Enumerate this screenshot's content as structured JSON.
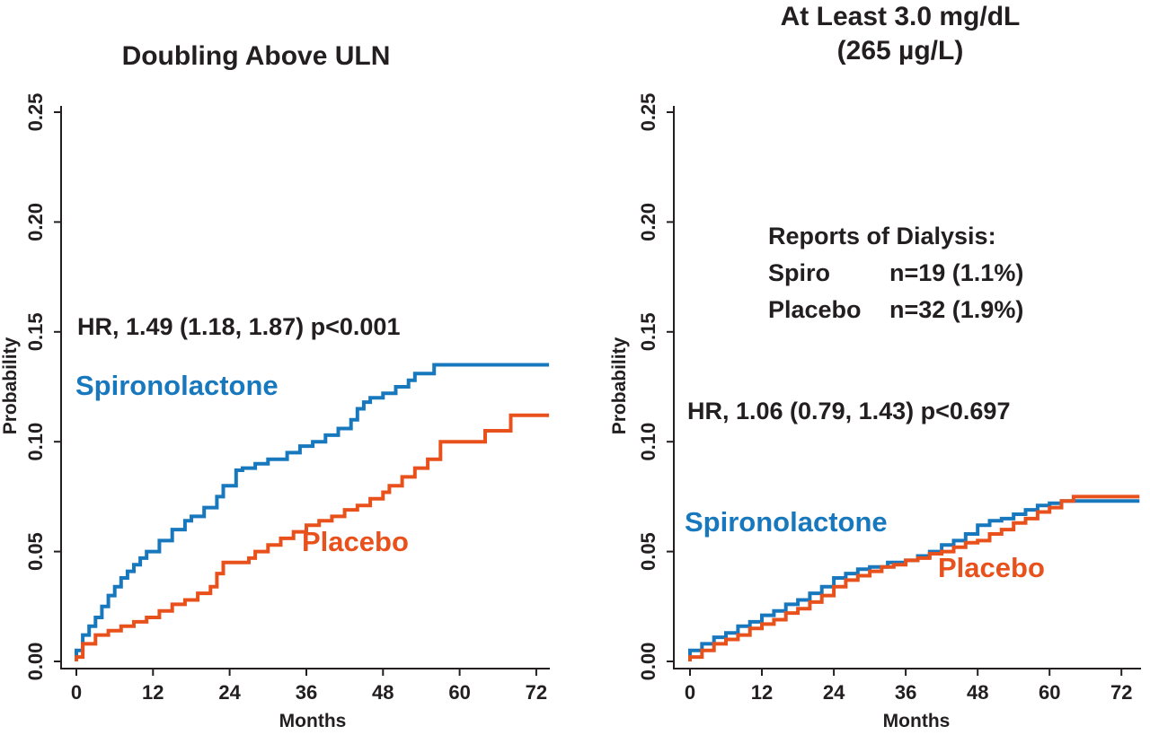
{
  "colors": {
    "spironolactone": "#1878be",
    "placebo": "#e9511c",
    "axis": "#231f20",
    "text": "#231f20"
  },
  "chart_data": [
    {
      "type": "line",
      "line_style": "step",
      "title": "Doubling Above ULN",
      "xlabel": "Months",
      "ylabel": "Probability",
      "xlim": [
        0,
        75
      ],
      "ylim": [
        0,
        0.25
      ],
      "xticks": [
        0,
        12,
        24,
        36,
        48,
        60,
        72
      ],
      "yticks": [
        0,
        0.05,
        0.1,
        0.15,
        0.2,
        0.25
      ],
      "grid": false,
      "legend_position": "inline-labels",
      "annotation": "HR, 1.49 (1.18, 1.87) p<0.001",
      "series": [
        {
          "name": "Spironolactone",
          "color_key": "spironolactone",
          "x": [
            0,
            1,
            2,
            3,
            4,
            5,
            6,
            7,
            8,
            9,
            10,
            11,
            13,
            15,
            17,
            18,
            20,
            22,
            23,
            25,
            26,
            28,
            30,
            33,
            35,
            37,
            39,
            41,
            43,
            44,
            45,
            46,
            48,
            50,
            52,
            53,
            56,
            74
          ],
          "y": [
            0.005,
            0.012,
            0.016,
            0.02,
            0.025,
            0.03,
            0.034,
            0.038,
            0.041,
            0.044,
            0.047,
            0.05,
            0.055,
            0.06,
            0.064,
            0.066,
            0.07,
            0.075,
            0.08,
            0.087,
            0.088,
            0.09,
            0.092,
            0.095,
            0.098,
            0.1,
            0.103,
            0.106,
            0.11,
            0.115,
            0.118,
            0.12,
            0.122,
            0.125,
            0.128,
            0.131,
            0.135,
            0.135
          ]
        },
        {
          "name": "Placebo",
          "color_key": "placebo",
          "x": [
            0,
            1,
            3,
            5,
            7,
            9,
            11,
            13,
            15,
            17,
            19,
            21,
            22,
            23,
            27,
            28,
            30,
            32,
            34,
            36,
            38,
            40,
            42,
            44,
            46,
            48,
            49,
            51,
            53,
            55,
            57,
            63,
            64,
            68,
            74
          ],
          "y": [
            0.002,
            0.008,
            0.012,
            0.014,
            0.016,
            0.018,
            0.02,
            0.023,
            0.026,
            0.028,
            0.031,
            0.034,
            0.04,
            0.045,
            0.047,
            0.05,
            0.053,
            0.056,
            0.059,
            0.062,
            0.064,
            0.066,
            0.069,
            0.071,
            0.074,
            0.077,
            0.08,
            0.084,
            0.088,
            0.092,
            0.1,
            0.1,
            0.105,
            0.112,
            0.112
          ]
        }
      ]
    },
    {
      "type": "line",
      "line_style": "step",
      "title_line1": "At Least 3.0 mg/dL",
      "title_line2": "(265 µg/L)",
      "xlabel": "Months",
      "ylabel": "Probability",
      "xlim": [
        0,
        76
      ],
      "ylim": [
        0,
        0.25
      ],
      "xticks": [
        0,
        12,
        24,
        36,
        48,
        60,
        72
      ],
      "yticks": [
        0,
        0.05,
        0.1,
        0.15,
        0.2,
        0.25
      ],
      "grid": false,
      "legend_position": "inline-labels",
      "annotation": "HR, 1.06 (0.79, 1.43) p<0.697",
      "stats_box": {
        "title": "Reports of Dialysis:",
        "rows": [
          {
            "label": "Spiro",
            "value": "n=19 (1.1%)"
          },
          {
            "label": "Placebo",
            "value": "n=32 (1.9%)"
          }
        ]
      },
      "series": [
        {
          "name": "Spironolactone",
          "color_key": "spironolactone",
          "x": [
            0,
            2,
            4,
            6,
            8,
            10,
            12,
            14,
            16,
            18,
            20,
            22,
            24,
            26,
            28,
            30,
            33,
            36,
            38,
            40,
            42,
            44,
            46,
            48,
            50,
            52,
            54,
            56,
            58,
            60,
            62,
            75
          ],
          "y": [
            0.005,
            0.008,
            0.011,
            0.013,
            0.016,
            0.018,
            0.021,
            0.023,
            0.026,
            0.028,
            0.031,
            0.034,
            0.038,
            0.04,
            0.042,
            0.043,
            0.045,
            0.046,
            0.048,
            0.05,
            0.053,
            0.055,
            0.058,
            0.062,
            0.064,
            0.065,
            0.067,
            0.069,
            0.071,
            0.072,
            0.073,
            0.073
          ]
        },
        {
          "name": "Placebo",
          "color_key": "placebo",
          "x": [
            0,
            2,
            4,
            6,
            8,
            10,
            12,
            14,
            16,
            18,
            20,
            22,
            24,
            26,
            28,
            30,
            32,
            34,
            36,
            38,
            40,
            42,
            44,
            46,
            48,
            50,
            52,
            54,
            56,
            58,
            60,
            62,
            64,
            75
          ],
          "y": [
            0.002,
            0.005,
            0.008,
            0.01,
            0.012,
            0.015,
            0.017,
            0.019,
            0.022,
            0.024,
            0.027,
            0.03,
            0.034,
            0.037,
            0.039,
            0.041,
            0.043,
            0.044,
            0.046,
            0.047,
            0.049,
            0.05,
            0.052,
            0.054,
            0.055,
            0.058,
            0.06,
            0.063,
            0.065,
            0.068,
            0.07,
            0.073,
            0.075,
            0.075
          ]
        }
      ]
    }
  ]
}
